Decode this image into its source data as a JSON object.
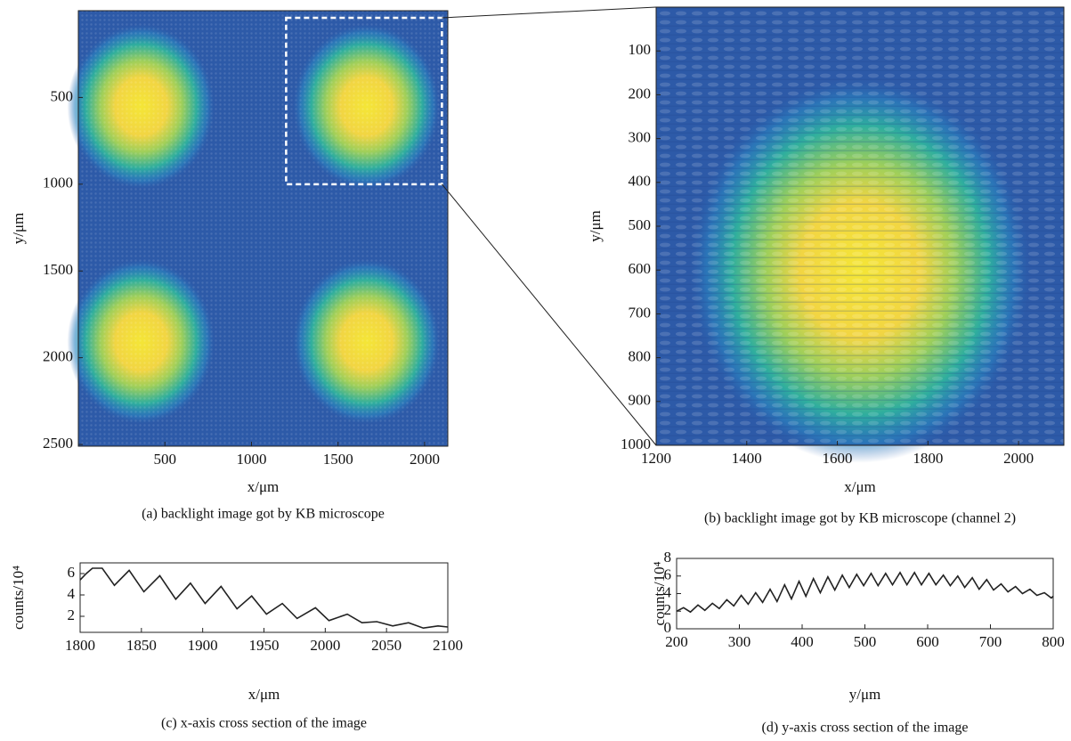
{
  "chart_data": [
    {
      "type": "image",
      "x_label": "x/μm",
      "y_label": "y/μm",
      "caption": "(a) backlight image got by KB microscope",
      "xlim": [
        0,
        2134
      ],
      "xticks": [
        500,
        1000,
        1500,
        2000
      ],
      "ylim": [
        0,
        2510
      ],
      "yticks": [
        500,
        1000,
        1500,
        2000,
        2500
      ],
      "y_reversed": true
    },
    {
      "type": "image",
      "x_label": "x/μm",
      "y_label": "y/μm",
      "caption": "(b) backlight image got by KB microscope (channel 2)",
      "xlim": [
        1200,
        2100
      ],
      "xticks": [
        1200,
        1400,
        1600,
        1800,
        2000
      ],
      "ylim": [
        0,
        1000
      ],
      "yticks": [
        100,
        200,
        300,
        400,
        500,
        600,
        700,
        800,
        900,
        1000
      ],
      "y_reversed": true
    },
    {
      "type": "line",
      "x_label": "x/μm",
      "y_label": "counts/10⁴",
      "caption": "(c) x-axis cross section of the image",
      "color": "#222222",
      "xlim": [
        1800,
        2100
      ],
      "xticks": [
        1800,
        1850,
        1900,
        1950,
        2000,
        2050,
        2100
      ],
      "ylim": [
        0.5,
        7
      ],
      "yticks": [
        2,
        4,
        6
      ],
      "x": [
        1800,
        1805,
        1810,
        1818,
        1828,
        1840,
        1852,
        1865,
        1878,
        1890,
        1902,
        1915,
        1928,
        1940,
        1952,
        1965,
        1977,
        1992,
        2003,
        2018,
        2030,
        2042,
        2055,
        2068,
        2080,
        2092,
        2100
      ],
      "values": [
        5.4,
        6.0,
        6.5,
        6.5,
        4.9,
        6.3,
        4.3,
        5.8,
        3.6,
        5.1,
        3.2,
        4.8,
        2.7,
        3.9,
        2.2,
        3.2,
        1.8,
        2.8,
        1.6,
        2.2,
        1.4,
        1.5,
        1.1,
        1.4,
        0.9,
        1.1,
        1.0
      ]
    },
    {
      "type": "line",
      "x_label": "y/μm",
      "y_label": "counts/10⁴",
      "caption": "(d) y-axis cross section of the image",
      "color": "#222222",
      "xlim": [
        200,
        800
      ],
      "xticks": [
        200,
        300,
        400,
        500,
        600,
        700,
        800
      ],
      "ylim": [
        0,
        8
      ],
      "yticks": [
        0,
        2,
        4,
        6,
        8
      ],
      "x": [
        200,
        211,
        222,
        234,
        245,
        257,
        268,
        280,
        291,
        303,
        314,
        326,
        337,
        349,
        360,
        372,
        383,
        395,
        406,
        418,
        429,
        441,
        452,
        464,
        475,
        487,
        498,
        510,
        521,
        533,
        544,
        556,
        567,
        579,
        590,
        602,
        613,
        625,
        636,
        648,
        659,
        671,
        682,
        694,
        705,
        717,
        728,
        740,
        751,
        763,
        774,
        786,
        797,
        800
      ],
      "values": [
        2.0,
        2.4,
        1.9,
        2.7,
        2.1,
        2.9,
        2.3,
        3.3,
        2.6,
        3.8,
        2.8,
        4.1,
        3.0,
        4.5,
        3.1,
        5.0,
        3.4,
        5.4,
        3.7,
        5.7,
        4.1,
        5.9,
        4.4,
        6.1,
        4.7,
        6.2,
        4.9,
        6.3,
        4.9,
        6.3,
        5.0,
        6.4,
        5.0,
        6.4,
        5.0,
        6.3,
        5.0,
        6.1,
        4.9,
        6.0,
        4.7,
        5.8,
        4.5,
        5.6,
        4.4,
        5.1,
        4.2,
        4.8,
        4.0,
        4.5,
        3.8,
        4.1,
        3.5,
        3.7
      ]
    }
  ]
}
